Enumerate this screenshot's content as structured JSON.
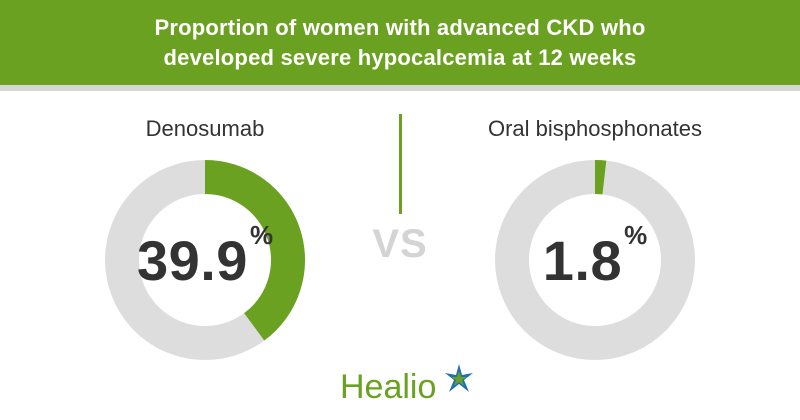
{
  "header": {
    "line1": "Proportion of women with advanced CKD who",
    "line2": "developed severe hypocalcemia at 12 weeks"
  },
  "vs_label": "VS",
  "logo": {
    "text": "Healio",
    "icon": "healio-star-icon"
  },
  "colors": {
    "accent": "#6aa121",
    "track": "#dddddd",
    "text": "#333333",
    "vs": "#d4d4d4",
    "logo_blue": "#1f6fb2"
  },
  "chart_data": [
    {
      "type": "pie",
      "title": "Denosumab",
      "value": 39.9,
      "unit": "%",
      "display_value": "39.9"
    },
    {
      "type": "pie",
      "title": "Oral bisphosphonates",
      "value": 1.8,
      "unit": "%",
      "display_value": "1.8"
    }
  ]
}
